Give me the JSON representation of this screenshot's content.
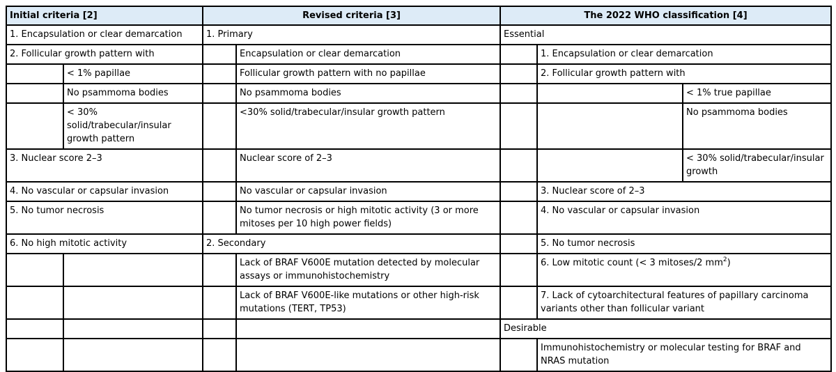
{
  "headers": {
    "initial": "Initial criteria [2]",
    "revised": "Revised criteria [3]",
    "who": "The 2022 WHO classification [4]"
  },
  "initial": {
    "c1": "1. Encapsulation or clear demarcation",
    "c2": "2. Follicular growth pattern with",
    "c2a": "< 1% papillae",
    "c2b": "No psammoma bodies",
    "c2c": "< 30% solid/trabecular/insular growth pattern",
    "c3": "3. Nuclear score 2–3",
    "c4": "4. No vascular or capsular invasion",
    "c5": "5. No tumor necrosis",
    "c6": "6. No high mitotic activity"
  },
  "revised": {
    "primary": "1. Primary",
    "p1": "Encapsulation or clear demarcation",
    "p2": "Follicular growth pattern with no papillae",
    "p3": "No psammoma bodies",
    "p4": "<30% solid/trabecular/insular growth pattern",
    "p5": "Nuclear score of 2–3",
    "p6": "No vascular or capsular invasion",
    "p7": "No tumor necrosis or high mitotic activity (3 or more mitoses per 10 high power fields)",
    "secondary": "2. Secondary",
    "s1": "Lack of BRAF V600E mutation detected by molecular assays or immunohistochemistry",
    "s2": "Lack of BRAF V600E-like mutations or other high-risk mutations (TERT, TP53)"
  },
  "who": {
    "essential": "Essential",
    "e1": "1. Encapsulation or clear demarcation",
    "e2": "2. Follicular growth pattern with",
    "e2a": "< 1% true papillae",
    "e2b": "No psammoma bodies",
    "e2c": "< 30% solid/trabecular/insular growth",
    "e3": "3. Nuclear score of 2–3",
    "e4": "4. No vascular or capsular invasion",
    "e5": "5. No tumor necrosis",
    "e6_text": "6. Low mitotic count (< 3 mitoses/2 mm",
    "e6_sup": "2",
    "e6_close": ")",
    "e7": "7. Lack of cytoarchitectural features of papillary carcinoma variants other than follicular variant",
    "desirable": "Desirable",
    "d1": "Immunohistochemistry or molecular testing for BRAF and NRAS mutation"
  }
}
